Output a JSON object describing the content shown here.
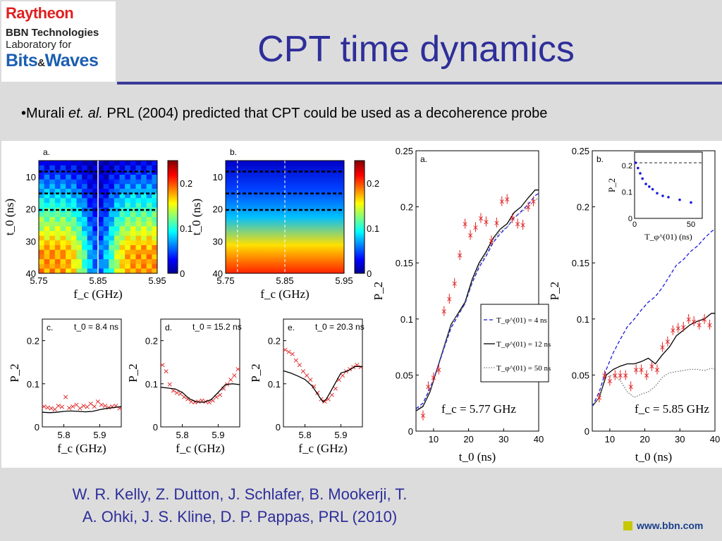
{
  "header": {
    "logo": {
      "line1": "Raytheon",
      "line2": "BBN Technologies",
      "line3": "Laboratory for",
      "line4_a": "Bits",
      "line4_amp": "&",
      "line4_b": "Waves"
    },
    "title": "CPT time dynamics"
  },
  "bullet": {
    "prefix": "•Murali ",
    "italic": "et. al.",
    "suffix": " PRL (2004) predicted that CPT could be used as a decoherence probe"
  },
  "citation": {
    "line1": "W. R. Kelly, Z. Dutton, J. Schlafer, B. Mookerji, T.",
    "line2": "A. Ohki, J. S. Kline, D. P. Pappas, PRL (2010)"
  },
  "footer": {
    "website": "www.bbn.com",
    "square_color": "#c8c800"
  },
  "colors": {
    "title": "#2e2e9a",
    "rule": "#3a3a98",
    "points": "#e02020",
    "theory_blue": "#1a1ae0"
  },
  "chart_data": [
    {
      "id": "a-heatmap",
      "type": "heatmap",
      "panel_label": "a.",
      "xlabel": "f_c (GHz)",
      "ylabel": "t_0 (ns)",
      "xticks": [
        "5.75",
        "5.85",
        "5.95"
      ],
      "yticks": [
        "10",
        "20",
        "30",
        "40"
      ],
      "colorbar_ticks": [
        "0",
        "0.1",
        "0.2"
      ],
      "zlim": [
        0,
        0.25
      ],
      "dashed_t0": [
        8.4,
        15.2,
        20.3
      ],
      "solid_fc": 5.85
    },
    {
      "id": "b-heatmap",
      "type": "heatmap",
      "panel_label": "b.",
      "xlabel": "f_c (GHz)",
      "ylabel": "t_0 (ns)",
      "xticks": [
        "5.75",
        "5.85",
        "5.95"
      ],
      "yticks": [
        "10",
        "20",
        "30",
        "40"
      ],
      "colorbar_ticks": [
        "0",
        "0.1",
        "0.2"
      ],
      "zlim": [
        0,
        0.25
      ],
      "dashed_t0": [
        8.4,
        15.2,
        20.3
      ],
      "dashed_fc": [
        5.77,
        5.85
      ]
    },
    {
      "id": "c-cut",
      "type": "scatter",
      "panel_label": "c.",
      "annotation": "t_0 = 8.4 ns",
      "xlabel": "f_c (GHz)",
      "ylabel": "P_2",
      "xlim": [
        5.74,
        5.96
      ],
      "ylim": [
        0,
        0.25
      ],
      "xticks": [
        "5.8",
        "5.9"
      ],
      "yticks": [
        "0",
        "0.1",
        "0.2"
      ],
      "series": [
        {
          "style": "points",
          "x": [
            5.745,
            5.755,
            5.765,
            5.775,
            5.785,
            5.795,
            5.805,
            5.815,
            5.825,
            5.835,
            5.845,
            5.855,
            5.865,
            5.875,
            5.885,
            5.895,
            5.905,
            5.915,
            5.925,
            5.935,
            5.945,
            5.955
          ],
          "y": [
            0.048,
            0.046,
            0.044,
            0.042,
            0.05,
            0.047,
            0.07,
            0.045,
            0.048,
            0.052,
            0.044,
            0.05,
            0.047,
            0.055,
            0.048,
            0.06,
            0.052,
            0.05,
            0.046,
            0.048,
            0.05,
            0.044
          ]
        },
        {
          "style": "line",
          "x": [
            5.74,
            5.76,
            5.78,
            5.8,
            5.82,
            5.84,
            5.86,
            5.88,
            5.9,
            5.92,
            5.94,
            5.96
          ],
          "y": [
            0.034,
            0.033,
            0.034,
            0.036,
            0.037,
            0.036,
            0.035,
            0.036,
            0.04,
            0.043,
            0.045,
            0.047
          ]
        }
      ]
    },
    {
      "id": "d-cut",
      "type": "scatter",
      "panel_label": "d.",
      "annotation": "t_0 = 15.2 ns",
      "xlabel": "f_c (GHz)",
      "ylabel": "P_2",
      "xlim": [
        5.74,
        5.96
      ],
      "ylim": [
        0,
        0.25
      ],
      "xticks": [
        "5.8",
        "5.9"
      ],
      "yticks": [
        "0",
        "0.1",
        "0.2"
      ],
      "series": [
        {
          "style": "points",
          "x": [
            5.745,
            5.755,
            5.765,
            5.775,
            5.785,
            5.795,
            5.805,
            5.815,
            5.825,
            5.835,
            5.845,
            5.855,
            5.865,
            5.875,
            5.885,
            5.895,
            5.905,
            5.915,
            5.925,
            5.935,
            5.945,
            5.955
          ],
          "y": [
            0.145,
            0.13,
            0.1,
            0.085,
            0.08,
            0.078,
            0.07,
            0.065,
            0.06,
            0.058,
            0.06,
            0.062,
            0.06,
            0.058,
            0.062,
            0.07,
            0.075,
            0.09,
            0.1,
            0.11,
            0.12,
            0.135
          ]
        },
        {
          "style": "line",
          "x": [
            5.74,
            5.76,
            5.78,
            5.8,
            5.82,
            5.84,
            5.86,
            5.88,
            5.9,
            5.92,
            5.94,
            5.96
          ],
          "y": [
            0.092,
            0.09,
            0.088,
            0.08,
            0.065,
            0.058,
            0.057,
            0.063,
            0.08,
            0.098,
            0.1,
            0.098
          ]
        }
      ]
    },
    {
      "id": "e-cut",
      "type": "scatter",
      "panel_label": "e.",
      "annotation": "t_0 = 20.3 ns",
      "xlabel": "f_c (GHz)",
      "ylabel": "P_2",
      "xlim": [
        5.74,
        5.96
      ],
      "ylim": [
        0,
        0.25
      ],
      "xticks": [
        "5.8",
        "5.9"
      ],
      "yticks": [
        "0",
        "0.1",
        "0.2"
      ],
      "series": [
        {
          "style": "points",
          "x": [
            5.745,
            5.755,
            5.765,
            5.775,
            5.785,
            5.795,
            5.805,
            5.815,
            5.825,
            5.835,
            5.845,
            5.855,
            5.865,
            5.875,
            5.885,
            5.895,
            5.905,
            5.915,
            5.925,
            5.935,
            5.945,
            5.955
          ],
          "y": [
            0.18,
            0.175,
            0.17,
            0.155,
            0.145,
            0.13,
            0.12,
            0.11,
            0.095,
            0.08,
            0.065,
            0.06,
            0.065,
            0.075,
            0.09,
            0.11,
            0.12,
            0.13,
            0.135,
            0.14,
            0.145,
            0.14
          ]
        },
        {
          "style": "line",
          "x": [
            5.74,
            5.76,
            5.78,
            5.8,
            5.82,
            5.84,
            5.85,
            5.86,
            5.88,
            5.9,
            5.92,
            5.94,
            5.96
          ],
          "y": [
            0.13,
            0.125,
            0.118,
            0.11,
            0.095,
            0.07,
            0.058,
            0.065,
            0.095,
            0.125,
            0.13,
            0.14,
            0.14
          ]
        }
      ]
    },
    {
      "id": "fig2a",
      "type": "line",
      "panel_label": "a.",
      "annotation": "f_c = 5.77 GHz",
      "xlabel": "t_0 (ns)",
      "ylabel": "P_2",
      "xlim": [
        5,
        40
      ],
      "ylim": [
        0,
        0.25
      ],
      "xticks": [
        "10",
        "20",
        "30",
        "40"
      ],
      "yticks": [
        "0",
        "0.05",
        "0.1",
        "0.15",
        "0.2",
        "0.25"
      ],
      "legend": [
        "T_φ^(01) = 4 ns",
        "T_φ^(01) = 12 ns",
        "T_φ^(01) = 50 ns"
      ],
      "series": [
        {
          "name": "T_φ^(01) = 12 ns",
          "style": "solid",
          "x": [
            5,
            7,
            9,
            11,
            13,
            15,
            17,
            19,
            21,
            23,
            25,
            27,
            29,
            31,
            33,
            35,
            37,
            39,
            40
          ],
          "y": [
            0.018,
            0.022,
            0.035,
            0.055,
            0.075,
            0.095,
            0.105,
            0.115,
            0.135,
            0.15,
            0.16,
            0.172,
            0.18,
            0.185,
            0.195,
            0.2,
            0.208,
            0.215,
            0.215
          ]
        },
        {
          "name": "T_φ^(01) = 4 ns",
          "style": "dashed",
          "x": [
            5,
            7,
            9,
            11,
            13,
            15,
            17,
            19,
            21,
            23,
            25,
            27,
            29,
            31,
            33,
            35,
            37,
            39,
            40
          ],
          "y": [
            0.02,
            0.025,
            0.038,
            0.055,
            0.074,
            0.092,
            0.103,
            0.114,
            0.132,
            0.146,
            0.156,
            0.168,
            0.176,
            0.182,
            0.19,
            0.196,
            0.202,
            0.21,
            0.212
          ]
        },
        {
          "name": "T_φ^(01) = 50 ns",
          "style": "dotted",
          "x": [
            5,
            7,
            9,
            11,
            13,
            15,
            17,
            19,
            21,
            23,
            25,
            27,
            29,
            31,
            33,
            35,
            37,
            39,
            40
          ],
          "y": [
            0.019,
            0.023,
            0.036,
            0.056,
            0.076,
            0.096,
            0.104,
            0.113,
            0.133,
            0.148,
            0.158,
            0.17,
            0.178,
            0.182,
            0.19,
            0.195,
            0.2,
            0.206,
            0.208
          ]
        },
        {
          "name": "data",
          "style": "points",
          "x": [
            7,
            8.5,
            10,
            11.5,
            13,
            14.5,
            16,
            17.5,
            19,
            20.5,
            22,
            23.5,
            25,
            26.5,
            28,
            29.5,
            31,
            32.5,
            34,
            35.5,
            37,
            38.5
          ],
          "y": [
            0.014,
            0.04,
            0.048,
            0.055,
            0.107,
            0.118,
            0.132,
            0.157,
            0.185,
            0.175,
            0.182,
            0.19,
            0.187,
            0.17,
            0.186,
            0.205,
            0.207,
            0.19,
            0.185,
            0.184,
            0.2,
            0.205
          ]
        }
      ]
    },
    {
      "id": "fig2b",
      "type": "line",
      "panel_label": "b.",
      "annotation": "f_c = 5.85 GHz",
      "xlabel": "t_0 (ns)",
      "ylabel": "P_2",
      "xlim": [
        5,
        40
      ],
      "ylim": [
        0,
        0.25
      ],
      "xticks": [
        "10",
        "20",
        "30",
        "40"
      ],
      "yticks": [
        "0",
        "0.05",
        "0.1",
        "0.15",
        "0.2",
        "0.25"
      ],
      "series": [
        {
          "name": "T_φ^(01) = 12 ns",
          "style": "solid",
          "x": [
            5,
            7,
            9,
            11,
            13,
            15,
            17,
            19,
            21,
            23,
            25,
            27,
            29,
            31,
            33,
            35,
            37,
            39,
            40
          ],
          "y": [
            0.022,
            0.03,
            0.05,
            0.055,
            0.058,
            0.06,
            0.06,
            0.062,
            0.065,
            0.06,
            0.068,
            0.075,
            0.085,
            0.09,
            0.095,
            0.098,
            0.1,
            0.105,
            0.105
          ]
        },
        {
          "name": "T_φ^(01) = 4 ns",
          "style": "dashed",
          "x": [
            5,
            7,
            9,
            11,
            13,
            15,
            17,
            19,
            21,
            23,
            25,
            27,
            29,
            31,
            33,
            35,
            37,
            39,
            40
          ],
          "y": [
            0.022,
            0.035,
            0.055,
            0.07,
            0.082,
            0.093,
            0.1,
            0.108,
            0.115,
            0.12,
            0.128,
            0.138,
            0.148,
            0.153,
            0.16,
            0.165,
            0.172,
            0.178,
            0.18
          ]
        },
        {
          "name": "T_φ^(01) = 50 ns",
          "style": "dotted",
          "x": [
            5,
            7,
            9,
            11,
            13,
            15,
            17,
            19,
            21,
            23,
            25,
            27,
            29,
            31,
            33,
            35,
            37,
            39,
            40
          ],
          "y": [
            0.022,
            0.03,
            0.048,
            0.05,
            0.045,
            0.035,
            0.03,
            0.033,
            0.035,
            0.04,
            0.048,
            0.052,
            0.053,
            0.054,
            0.055,
            0.055,
            0.054,
            0.056,
            0.055
          ]
        },
        {
          "name": "data",
          "style": "points",
          "x": [
            7,
            8.5,
            10,
            11.5,
            13,
            14.5,
            16,
            17.5,
            19,
            20.5,
            22,
            23.5,
            25,
            26.5,
            28,
            29.5,
            31,
            32.5,
            34,
            35.5,
            37,
            38.5
          ],
          "y": [
            0.03,
            0.05,
            0.045,
            0.05,
            0.05,
            0.05,
            0.04,
            0.055,
            0.055,
            0.05,
            0.058,
            0.055,
            0.075,
            0.08,
            0.09,
            0.092,
            0.093,
            0.1,
            0.098,
            0.095,
            0.1,
            0.095
          ]
        }
      ],
      "inset": {
        "xlabel": "T_φ^(01) (ns)",
        "ylabel": "P_2",
        "xlim": [
          0,
          60
        ],
        "ylim": [
          0,
          0.25
        ],
        "xticks": [
          "0",
          "50"
        ],
        "yticks": [
          "0",
          "0.1",
          "0.2"
        ],
        "ref_level": 0.21,
        "x": [
          1,
          3,
          5,
          7,
          10,
          13,
          16,
          20,
          25,
          30,
          40,
          50
        ],
        "y": [
          0.21,
          0.19,
          0.17,
          0.15,
          0.13,
          0.12,
          0.11,
          0.095,
          0.085,
          0.08,
          0.07,
          0.06
        ]
      }
    }
  ]
}
